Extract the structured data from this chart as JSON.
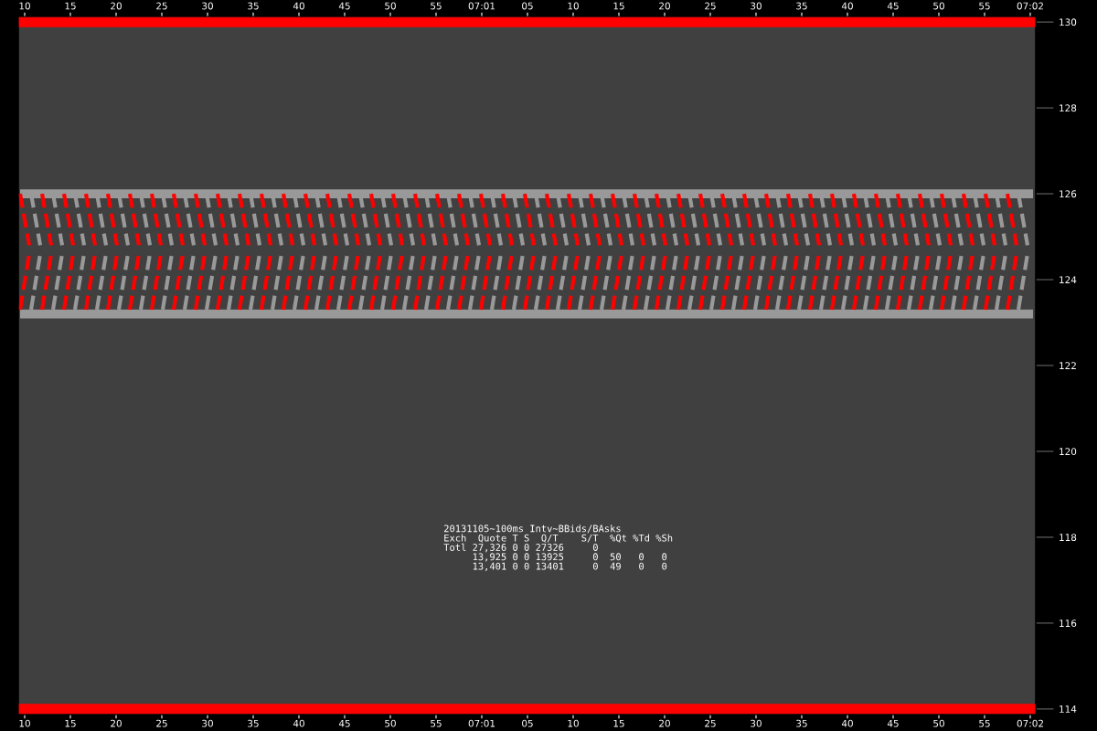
{
  "chart_data": {
    "type": "line",
    "xlim": [
      "2013-11-05T07:00:09.3",
      "2013-11-05T07:02:00.6"
    ],
    "xticks": [
      {
        "value": "2013-11-05T07:00:10",
        "label": "10"
      },
      {
        "value": "2013-11-05T07:00:15",
        "label": "15"
      },
      {
        "value": "2013-11-05T07:00:20",
        "label": "20"
      },
      {
        "value": "2013-11-05T07:00:25",
        "label": "25"
      },
      {
        "value": "2013-11-05T07:00:30",
        "label": "30"
      },
      {
        "value": "2013-11-05T07:00:35",
        "label": "35"
      },
      {
        "value": "2013-11-05T07:00:40",
        "label": "40"
      },
      {
        "value": "2013-11-05T07:00:45",
        "label": "45"
      },
      {
        "value": "2013-11-05T07:00:50",
        "label": "50"
      },
      {
        "value": "2013-11-05T07:00:55",
        "label": "55"
      },
      {
        "value": "2013-11-05T07:01:00",
        "label": "07:01"
      },
      {
        "value": "2013-11-05T07:01:05",
        "label": "05"
      },
      {
        "value": "2013-11-05T07:01:10",
        "label": "10"
      },
      {
        "value": "2013-11-05T07:01:15",
        "label": "15"
      },
      {
        "value": "2013-11-05T07:01:20",
        "label": "20"
      },
      {
        "value": "2013-11-05T07:01:25",
        "label": "25"
      },
      {
        "value": "2013-11-05T07:01:30",
        "label": "30"
      },
      {
        "value": "2013-11-05T07:01:35",
        "label": "35"
      },
      {
        "value": "2013-11-05T07:01:40",
        "label": "40"
      },
      {
        "value": "2013-11-05T07:01:45",
        "label": "45"
      },
      {
        "value": "2013-11-05T07:01:50",
        "label": "50"
      },
      {
        "value": "2013-11-05T07:01:55",
        "label": "55"
      },
      {
        "value": "2013-11-05T07:02:00",
        "label": "07:02"
      }
    ],
    "x2lim": [
      "2013-11-05T07:00:09.3",
      "2013-11-05T07:02:00.6"
    ],
    "x2ticks": [
      {
        "value": "2013-11-05T07:00:10",
        "label": "10"
      },
      {
        "value": "2013-11-05T07:00:15",
        "label": "15"
      },
      {
        "value": "2013-11-05T07:00:20",
        "label": "20"
      },
      {
        "value": "2013-11-05T07:00:25",
        "label": "25"
      },
      {
        "value": "2013-11-05T07:00:30",
        "label": "30"
      },
      {
        "value": "2013-11-05T07:00:35",
        "label": "35"
      },
      {
        "value": "2013-11-05T07:00:40",
        "label": "40"
      },
      {
        "value": "2013-11-05T07:00:45",
        "label": "45"
      },
      {
        "value": "2013-11-05T07:00:50",
        "label": "50"
      },
      {
        "value": "2013-11-05T07:00:55",
        "label": "55"
      },
      {
        "value": "2013-11-05T07:01:00",
        "label": "07:01"
      },
      {
        "value": "2013-11-05T07:01:05",
        "label": "05"
      },
      {
        "value": "2013-11-05T07:01:10",
        "label": "10"
      },
      {
        "value": "2013-11-05T07:01:15",
        "label": "15"
      },
      {
        "value": "2013-11-05T07:01:20",
        "label": "20"
      },
      {
        "value": "2013-11-05T07:01:25",
        "label": "25"
      },
      {
        "value": "2013-11-05T07:01:30",
        "label": "30"
      },
      {
        "value": "2013-11-05T07:01:35",
        "label": "35"
      },
      {
        "value": "2013-11-05T07:01:40",
        "label": "40"
      },
      {
        "value": "2013-11-05T07:01:45",
        "label": "45"
      },
      {
        "value": "2013-11-05T07:01:50",
        "label": "50"
      },
      {
        "value": "2013-11-05T07:01:55",
        "label": "55"
      },
      {
        "value": "2013-11-05T07:02:00",
        "label": "07:02"
      }
    ],
    "ylim": [
      113.87,
      130.13
    ],
    "yticks": [
      114,
      116,
      118,
      120,
      122,
      124,
      126,
      128,
      130
    ],
    "x": [
      "2013-11-05T07:00:09.5",
      "2013-11-05T07:00:10.5",
      "2013-11-05T07:00:10.7",
      "2013-11-05T07:00:11.7",
      "2013-11-05T07:00:11.9",
      "2013-11-05T07:00:12.9",
      "2013-11-05T07:00:13.1",
      "2013-11-05T07:00:14.1",
      "2013-11-05T07:00:14.3",
      "2013-11-05T07:00:15.3",
      "2013-11-05T07:00:15.5",
      "2013-11-05T07:00:16.5",
      "2013-11-05T07:00:16.7",
      "2013-11-05T07:00:17.7",
      "2013-11-05T07:00:17.9",
      "2013-11-05T07:00:18.9",
      "2013-11-05T07:00:19.1",
      "2013-11-05T07:00:20.1",
      "2013-11-05T07:00:20.3",
      "2013-11-05T07:00:21.3",
      "2013-11-05T07:00:21.5",
      "2013-11-05T07:00:22.5",
      "2013-11-05T07:00:22.7",
      "2013-11-05T07:00:23.7",
      "2013-11-05T07:00:23.9",
      "2013-11-05T07:00:24.9",
      "2013-11-05T07:00:25.1",
      "2013-11-05T07:00:26.1",
      "2013-11-05T07:00:26.3",
      "2013-11-05T07:00:27.3",
      "2013-11-05T07:00:27.5",
      "2013-11-05T07:00:28.5",
      "2013-11-05T07:00:28.7",
      "2013-11-05T07:00:29.7",
      "2013-11-05T07:00:29.9",
      "2013-11-05T07:00:30.9",
      "2013-11-05T07:00:31.1",
      "2013-11-05T07:00:32.1",
      "2013-11-05T07:00:32.3",
      "2013-11-05T07:00:33.3",
      "2013-11-05T07:00:33.5",
      "2013-11-05T07:00:34.5",
      "2013-11-05T07:00:34.7",
      "2013-11-05T07:00:35.7",
      "2013-11-05T07:00:35.9",
      "2013-11-05T07:00:36.9",
      "2013-11-05T07:00:37.1",
      "2013-11-05T07:00:38.1",
      "2013-11-05T07:00:38.3",
      "2013-11-05T07:00:39.3",
      "2013-11-05T07:00:39.5",
      "2013-11-05T07:00:40.5",
      "2013-11-05T07:00:40.7",
      "2013-11-05T07:00:41.7",
      "2013-11-05T07:00:41.9",
      "2013-11-05T07:00:42.9",
      "2013-11-05T07:00:43.1",
      "2013-11-05T07:00:44.1",
      "2013-11-05T07:00:44.3",
      "2013-11-05T07:00:45.3",
      "2013-11-05T07:00:45.5",
      "2013-11-05T07:00:46.5",
      "2013-11-05T07:00:46.7",
      "2013-11-05T07:00:47.7",
      "2013-11-05T07:00:47.9",
      "2013-11-05T07:00:48.9",
      "2013-11-05T07:00:49.1",
      "2013-11-05T07:00:50.1",
      "2013-11-05T07:00:50.3",
      "2013-11-05T07:00:51.3",
      "2013-11-05T07:00:51.5",
      "2013-11-05T07:00:52.5",
      "2013-11-05T07:00:52.7",
      "2013-11-05T07:00:53.7",
      "2013-11-05T07:00:53.9",
      "2013-11-05T07:00:54.9",
      "2013-11-05T07:00:55.1",
      "2013-11-05T07:00:56.1",
      "2013-11-05T07:00:56.3",
      "2013-11-05T07:00:57.3",
      "2013-11-05T07:00:57.5",
      "2013-11-05T07:00:58.5",
      "2013-11-05T07:00:58.7",
      "2013-11-05T07:00:59.7",
      "2013-11-05T07:00:59.9",
      "2013-11-05T07:01:00.9",
      "2013-11-05T07:01:01.1",
      "2013-11-05T07:01:02.1",
      "2013-11-05T07:01:02.3",
      "2013-11-05T07:01:03.3",
      "2013-11-05T07:01:03.5",
      "2013-11-05T07:01:04.5",
      "2013-11-05T07:01:04.7",
      "2013-11-05T07:01:05.7",
      "2013-11-05T07:01:05.9",
      "2013-11-05T07:01:06.9",
      "2013-11-05T07:01:07.1",
      "2013-11-05T07:01:08.1",
      "2013-11-05T07:01:08.3",
      "2013-11-05T07:01:09.3",
      "2013-11-05T07:01:09.5",
      "2013-11-05T07:01:10.5",
      "2013-11-05T07:01:10.7",
      "2013-11-05T07:01:11.7",
      "2013-11-05T07:01:11.9",
      "2013-11-05T07:01:12.9",
      "2013-11-05T07:01:13.1",
      "2013-11-05T07:01:14.1",
      "2013-11-05T07:01:14.3",
      "2013-11-05T07:01:15.3",
      "2013-11-05T07:01:15.5",
      "2013-11-05T07:01:16.5",
      "2013-11-05T07:01:16.7",
      "2013-11-05T07:01:17.7",
      "2013-11-05T07:01:17.9",
      "2013-11-05T07:01:18.9",
      "2013-11-05T07:01:19.1",
      "2013-11-05T07:01:20.1",
      "2013-11-05T07:01:20.3",
      "2013-11-05T07:01:21.3",
      "2013-11-05T07:01:21.5",
      "2013-11-05T07:01:22.5",
      "2013-11-05T07:01:22.7",
      "2013-11-05T07:01:23.7",
      "2013-11-05T07:01:23.9",
      "2013-11-05T07:01:24.9",
      "2013-11-05T07:01:25.1",
      "2013-11-05T07:01:26.1",
      "2013-11-05T07:01:26.3",
      "2013-11-05T07:01:27.3",
      "2013-11-05T07:01:27.5",
      "2013-11-05T07:01:28.5",
      "2013-11-05T07:01:28.7",
      "2013-11-05T07:01:29.7",
      "2013-11-05T07:01:29.9",
      "2013-11-05T07:01:30.9",
      "2013-11-05T07:01:31.1",
      "2013-11-05T07:01:32.1",
      "2013-11-05T07:01:32.3",
      "2013-11-05T07:01:33.3",
      "2013-11-05T07:01:33.5",
      "2013-11-05T07:01:34.5",
      "2013-11-05T07:01:34.7",
      "2013-11-05T07:01:35.7",
      "2013-11-05T07:01:35.9",
      "2013-11-05T07:01:36.9",
      "2013-11-05T07:01:37.1",
      "2013-11-05T07:01:38.1",
      "2013-11-05T07:01:38.3",
      "2013-11-05T07:01:39.3",
      "2013-11-05T07:01:39.5",
      "2013-11-05T07:01:40.5",
      "2013-11-05T07:01:40.7",
      "2013-11-05T07:01:41.7",
      "2013-11-05T07:01:41.9",
      "2013-11-05T07:01:42.9",
      "2013-11-05T07:01:43.1",
      "2013-11-05T07:01:44.1",
      "2013-11-05T07:01:44.3",
      "2013-11-05T07:01:45.3",
      "2013-11-05T07:01:45.5",
      "2013-11-05T07:01:46.5",
      "2013-11-05T07:01:46.7",
      "2013-11-05T07:01:47.7",
      "2013-11-05T07:01:47.9",
      "2013-11-05T07:01:48.9",
      "2013-11-05T07:01:49.1",
      "2013-11-05T07:01:50.1",
      "2013-11-05T07:01:50.3",
      "2013-11-05T07:01:51.3",
      "2013-11-05T07:01:51.5",
      "2013-11-05T07:01:52.5",
      "2013-11-05T07:01:52.7",
      "2013-11-05T07:01:53.7",
      "2013-11-05T07:01:53.9",
      "2013-11-05T07:01:54.9",
      "2013-11-05T07:01:55.1",
      "2013-11-05T07:01:56.1",
      "2013-11-05T07:01:56.3",
      "2013-11-05T07:01:57.3",
      "2013-11-05T07:01:57.5",
      "2013-11-05T07:01:58.5",
      "2013-11-05T07:01:58.7",
      "2013-11-05T07:01:59.7"
    ],
    "series": [
      {
        "color": "#999999",
        "line_style": "solid",
        "x": [
          "2013-11-05T07:00:09.5",
          "2013-11-05T07:02:00.3"
        ],
        "values": [
          126,
          126
        ]
      },
      {
        "color": "#999999",
        "line_style": "solid",
        "x": [
          "2013-11-05T07:00:09.5",
          "2013-11-05T07:02:00.3"
        ],
        "values": [
          123.2,
          123.2
        ]
      },
      {
        "color": "#999999",
        "line_style": "dashed",
        "values": [
          null,
          null,
          126,
          124.8,
          null,
          null,
          126,
          124.8,
          null,
          null,
          126,
          124.8,
          null,
          null,
          126,
          124.8,
          null,
          null,
          126,
          124.8,
          null,
          null,
          126,
          124.8,
          null,
          null,
          126,
          124.8,
          null,
          null,
          126,
          124.8,
          null,
          null,
          126,
          124.8,
          null,
          null,
          126,
          124.8,
          null,
          null,
          126,
          124.8,
          null,
          null,
          126,
          124.8,
          null,
          null,
          126,
          124.8,
          null,
          null,
          126,
          124.8,
          null,
          null,
          126,
          124.8,
          null,
          null,
          126,
          124.8,
          null,
          null,
          126,
          124.8,
          null,
          null,
          126,
          124.8,
          null,
          null,
          126,
          124.8,
          null,
          null,
          126,
          124.8,
          null,
          null,
          126,
          124.8,
          null,
          null,
          126,
          124.8,
          null,
          null,
          126,
          124.8,
          null,
          null,
          126,
          124.8,
          null,
          null,
          126,
          124.8,
          null,
          null,
          126,
          124.8,
          null,
          null,
          126,
          124.8,
          null,
          null,
          126,
          124.8,
          null,
          null,
          126,
          124.8,
          null,
          null,
          126,
          124.8,
          null,
          null,
          126,
          124.8,
          null,
          null,
          126,
          124.8,
          null,
          null,
          126,
          124.8,
          null,
          null,
          126,
          124.8,
          null,
          null,
          126,
          124.8,
          null,
          null,
          126,
          124.8,
          null,
          null,
          126,
          124.8,
          null,
          null,
          126,
          124.8,
          null,
          null,
          126,
          124.8,
          null,
          null,
          126,
          124.8,
          null,
          null,
          126,
          124.8,
          null,
          null,
          126,
          124.8,
          null,
          null,
          126,
          124.8,
          null,
          null,
          126,
          124.8,
          null,
          null,
          126,
          124.8,
          null,
          null,
          126,
          124.8
        ]
      },
      {
        "color": "#999999",
        "line_style": "dashed",
        "values": [
          null,
          null,
          123.3,
          124.6,
          null,
          null,
          123.3,
          124.6,
          null,
          null,
          123.3,
          124.6,
          null,
          null,
          123.3,
          124.6,
          null,
          null,
          123.3,
          124.6,
          null,
          null,
          123.3,
          124.6,
          null,
          null,
          123.3,
          124.6,
          null,
          null,
          123.3,
          124.6,
          null,
          null,
          123.3,
          124.6,
          null,
          null,
          123.3,
          124.6,
          null,
          null,
          123.3,
          124.6,
          null,
          null,
          123.3,
          124.6,
          null,
          null,
          123.3,
          124.6,
          null,
          null,
          123.3,
          124.6,
          null,
          null,
          123.3,
          124.6,
          null,
          null,
          123.3,
          124.6,
          null,
          null,
          123.3,
          124.6,
          null,
          null,
          123.3,
          124.6,
          null,
          null,
          123.3,
          124.6,
          null,
          null,
          123.3,
          124.6,
          null,
          null,
          123.3,
          124.6,
          null,
          null,
          123.3,
          124.6,
          null,
          null,
          123.3,
          124.6,
          null,
          null,
          123.3,
          124.6,
          null,
          null,
          123.3,
          124.6,
          null,
          null,
          123.3,
          124.6,
          null,
          null,
          123.3,
          124.6,
          null,
          null,
          123.3,
          124.6,
          null,
          null,
          123.3,
          124.6,
          null,
          null,
          123.3,
          124.6,
          null,
          null,
          123.3,
          124.6,
          null,
          null,
          123.3,
          124.6,
          null,
          null,
          123.3,
          124.6,
          null,
          null,
          123.3,
          124.6,
          null,
          null,
          123.3,
          124.6,
          null,
          null,
          123.3,
          124.6,
          null,
          null,
          123.3,
          124.6,
          null,
          null,
          123.3,
          124.6,
          null,
          null,
          123.3,
          124.6,
          null,
          null,
          123.3,
          124.6,
          null,
          null,
          123.3,
          124.6,
          null,
          null,
          123.3,
          124.6,
          null,
          null,
          123.3,
          124.6,
          null,
          null,
          123.3,
          124.6,
          null,
          null,
          123.3,
          124.6,
          null,
          null,
          123.3,
          124.6
        ]
      },
      {
        "color": "#ff0000",
        "line_style": "dashed",
        "values": [
          126,
          124.8,
          null,
          null,
          126,
          124.8,
          null,
          null,
          126,
          124.8,
          null,
          null,
          126,
          124.8,
          null,
          null,
          126,
          124.8,
          null,
          null,
          126,
          124.8,
          null,
          null,
          126,
          124.8,
          null,
          null,
          126,
          124.8,
          null,
          null,
          126,
          124.8,
          null,
          null,
          126,
          124.8,
          null,
          null,
          126,
          124.8,
          null,
          null,
          126,
          124.8,
          null,
          null,
          126,
          124.8,
          null,
          null,
          126,
          124.8,
          null,
          null,
          126,
          124.8,
          null,
          null,
          126,
          124.8,
          null,
          null,
          126,
          124.8,
          null,
          null,
          126,
          124.8,
          null,
          null,
          126,
          124.8,
          null,
          null,
          126,
          124.8,
          null,
          null,
          126,
          124.8,
          null,
          null,
          126,
          124.8,
          null,
          null,
          126,
          124.8,
          null,
          null,
          126,
          124.8,
          null,
          null,
          126,
          124.8,
          null,
          null,
          126,
          124.8,
          null,
          null,
          126,
          124.8,
          null,
          null,
          126,
          124.8,
          null,
          null,
          126,
          124.8,
          null,
          null,
          126,
          124.8,
          null,
          null,
          126,
          124.8,
          null,
          null,
          126,
          124.8,
          null,
          null,
          126,
          124.8,
          null,
          null,
          126,
          124.8,
          null,
          null,
          126,
          124.8,
          null,
          null,
          126,
          124.8,
          null,
          null,
          126,
          124.8,
          null,
          null,
          126,
          124.8,
          null,
          null,
          126,
          124.8,
          null,
          null,
          126,
          124.8,
          null,
          null,
          126,
          124.8,
          null,
          null,
          126,
          124.8,
          null,
          null,
          126,
          124.8,
          null,
          null,
          126,
          124.8,
          null,
          null,
          126,
          124.8,
          null,
          null,
          126,
          124.8,
          null,
          null
        ]
      },
      {
        "color": "#ff0000",
        "line_style": "dashed",
        "values": [
          123.3,
          124.6,
          null,
          null,
          123.3,
          124.6,
          null,
          null,
          123.3,
          124.6,
          null,
          null,
          123.3,
          124.6,
          null,
          null,
          123.3,
          124.6,
          null,
          null,
          123.3,
          124.6,
          null,
          null,
          123.3,
          124.6,
          null,
          null,
          123.3,
          124.6,
          null,
          null,
          123.3,
          124.6,
          null,
          null,
          123.3,
          124.6,
          null,
          null,
          123.3,
          124.6,
          null,
          null,
          123.3,
          124.6,
          null,
          null,
          123.3,
          124.6,
          null,
          null,
          123.3,
          124.6,
          null,
          null,
          123.3,
          124.6,
          null,
          null,
          123.3,
          124.6,
          null,
          null,
          123.3,
          124.6,
          null,
          null,
          123.3,
          124.6,
          null,
          null,
          123.3,
          124.6,
          null,
          null,
          123.3,
          124.6,
          null,
          null,
          123.3,
          124.6,
          null,
          null,
          123.3,
          124.6,
          null,
          null,
          123.3,
          124.6,
          null,
          null,
          123.3,
          124.6,
          null,
          null,
          123.3,
          124.6,
          null,
          null,
          123.3,
          124.6,
          null,
          null,
          123.3,
          124.6,
          null,
          null,
          123.3,
          124.6,
          null,
          null,
          123.3,
          124.6,
          null,
          null,
          123.3,
          124.6,
          null,
          null,
          123.3,
          124.6,
          null,
          null,
          123.3,
          124.6,
          null,
          null,
          123.3,
          124.6,
          null,
          null,
          123.3,
          124.6,
          null,
          null,
          123.3,
          124.6,
          null,
          null,
          123.3,
          124.6,
          null,
          null,
          123.3,
          124.6,
          null,
          null,
          123.3,
          124.6,
          null,
          null,
          123.3,
          124.6,
          null,
          null,
          123.3,
          124.6,
          null,
          null,
          123.3,
          124.6,
          null,
          null,
          123.3,
          124.6,
          null,
          null,
          123.3,
          124.6,
          null,
          null,
          123.3,
          124.6,
          null,
          null,
          123.3,
          124.6,
          null,
          null,
          123.3,
          124.6,
          null,
          null
        ]
      }
    ],
    "ref_lines": [
      {
        "axis": "y",
        "value": 130,
        "color": "#ff0000",
        "line_style": "solid"
      },
      {
        "axis": "y",
        "value": 114,
        "color": "#ff0000",
        "line_style": "solid"
      }
    ],
    "annotations": [
      "20131105~100ms Intv~BBids/BAsks",
      "Exch  Quote T S  Q/T    S/T  %Qt %Td %Sh",
      "Totl 27,326 0 0 27326     0",
      "     13,925 0 0 13925     0  50   0   0",
      "     13,401 0 0 13401     0  49   0   0"
    ]
  }
}
